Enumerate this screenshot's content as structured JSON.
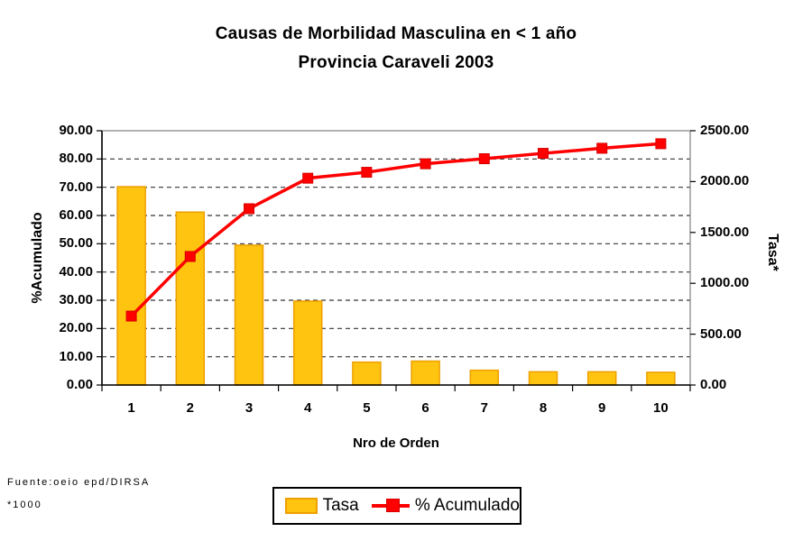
{
  "chart_data": {
    "type": "pareto (bar + line combo)",
    "title_line1": "Causas de Morbilidad Masculina en < 1 año",
    "title_line2": "Provincia Caraveli 2003",
    "categories": [
      "1",
      "2",
      "3",
      "4",
      "5",
      "6",
      "7",
      "8",
      "9",
      "10"
    ],
    "series": [
      {
        "name": "Tasa",
        "type": "bar",
        "axis": "right",
        "color": "#FFC410",
        "border_color": "#EE9F00",
        "values": [
          1950,
          1700,
          1375,
          825,
          225,
          235,
          145,
          130,
          130,
          125
        ]
      },
      {
        "name": "% Acumulado",
        "type": "line",
        "axis": "left",
        "color": "#FF0000",
        "marker_border": "#D40000",
        "marker": "square",
        "values": [
          24.4,
          45.5,
          62.4,
          73.2,
          75.3,
          78.3,
          80.1,
          82.0,
          83.8,
          85.4
        ]
      }
    ],
    "left_axis": {
      "label": "%Acumulado",
      "min": 0,
      "max": 90,
      "step": 10,
      "decimals": 2
    },
    "right_axis": {
      "label": "Tasa*",
      "min": 0,
      "max": 2500,
      "step": 500,
      "decimals": 2
    },
    "x_axis": {
      "label": "Nro de Orden"
    },
    "footer": {
      "source": "Fuente:oeio epd/DIRSA",
      "note": "*1000"
    },
    "legend_entries": [
      "Tasa",
      "% Acumulado"
    ],
    "grid": "horizontal-dashed",
    "legend_position": "bottom-center",
    "plot_border_color": "#808080",
    "axis_line_color": "#000000"
  }
}
